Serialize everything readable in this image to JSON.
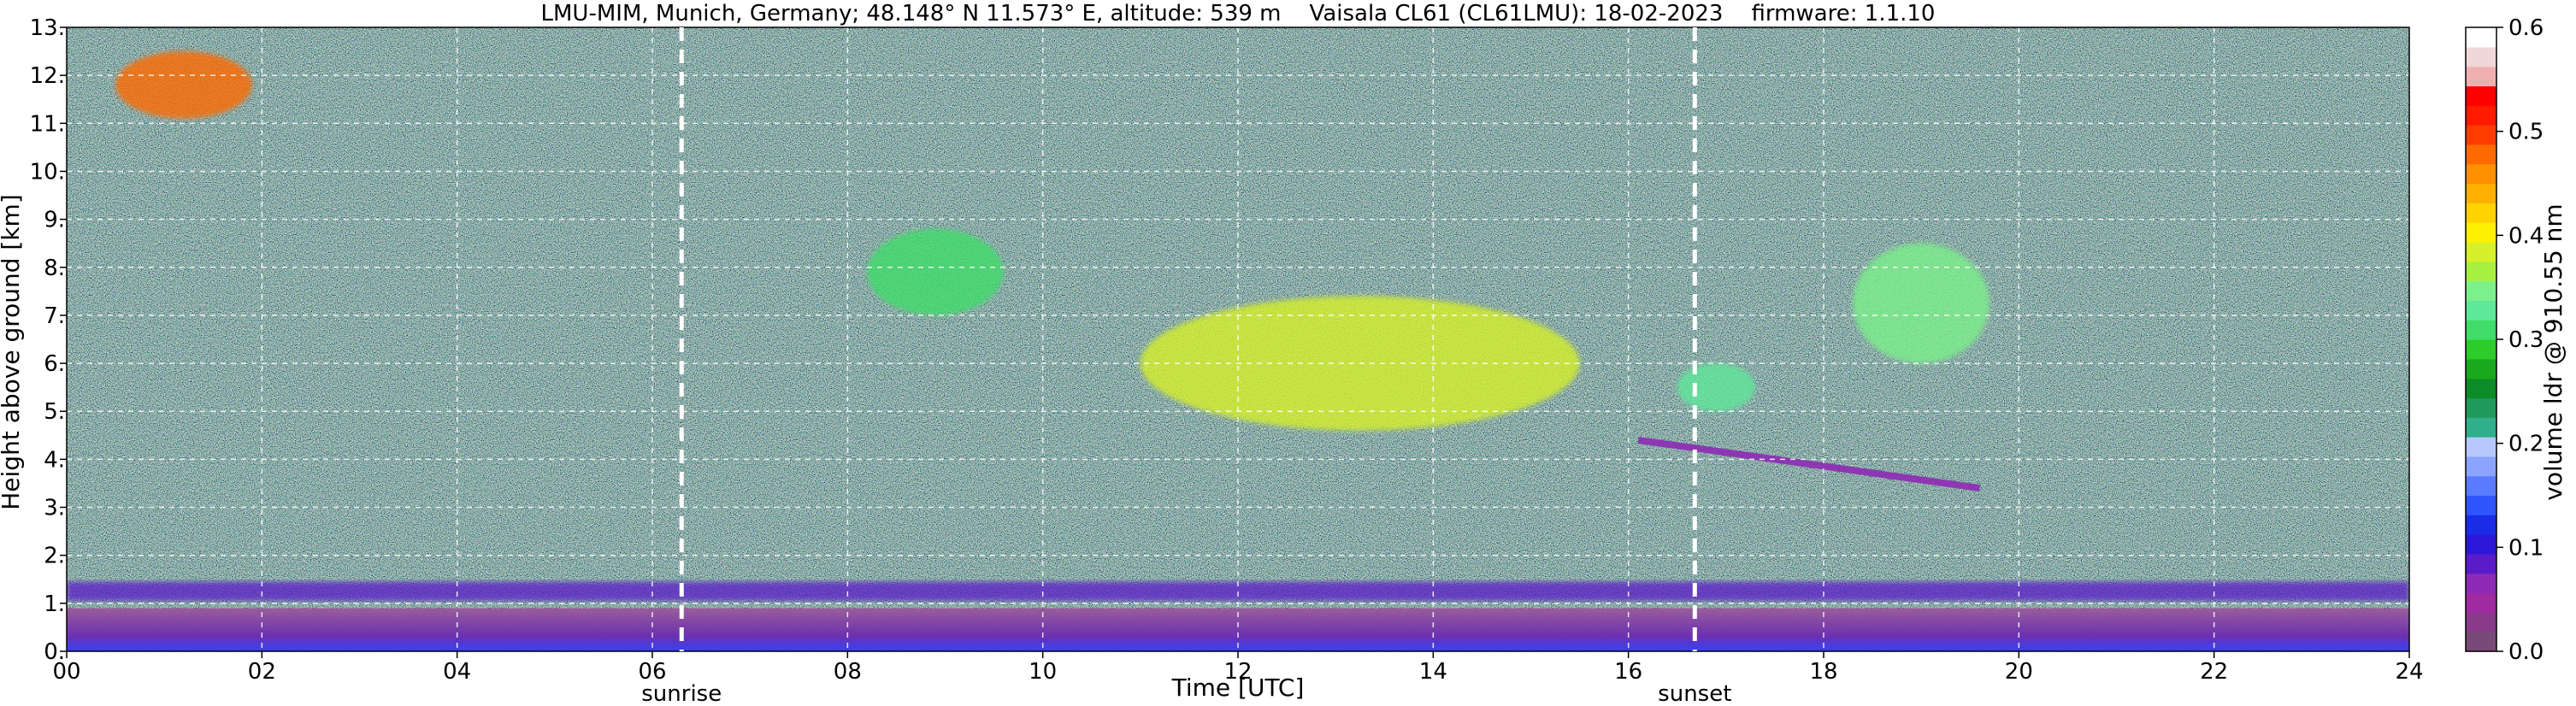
{
  "chart_data": {
    "type": "heatmap",
    "title": "LMU-MIM, Munich, Germany; 48.148° N 11.573° E, altitude: 539 m    Vaisala CL61 (CL61LMU): 18-02-2023    firmware: 1.1.10",
    "xlabel": "Time [UTC]",
    "ylabel": "Height above ground [km]",
    "xlim": [
      0,
      24
    ],
    "ylim": [
      0,
      13
    ],
    "x_ticks": [
      {
        "value": 0,
        "label": "00"
      },
      {
        "value": 2,
        "label": "02"
      },
      {
        "value": 4,
        "label": "04"
      },
      {
        "value": 6,
        "label": "06"
      },
      {
        "value": 8,
        "label": "08"
      },
      {
        "value": 10,
        "label": "10"
      },
      {
        "value": 12,
        "label": "12"
      },
      {
        "value": 14,
        "label": "14"
      },
      {
        "value": 16,
        "label": "16"
      },
      {
        "value": 18,
        "label": "18"
      },
      {
        "value": 20,
        "label": "20"
      },
      {
        "value": 22,
        "label": "22"
      },
      {
        "value": 24,
        "label": "24"
      }
    ],
    "y_ticks": [
      {
        "value": 0,
        "label": "0."
      },
      {
        "value": 1,
        "label": "1."
      },
      {
        "value": 2,
        "label": "2."
      },
      {
        "value": 3,
        "label": "3."
      },
      {
        "value": 4,
        "label": "4."
      },
      {
        "value": 5,
        "label": "5."
      },
      {
        "value": 6,
        "label": "6."
      },
      {
        "value": 7,
        "label": "7."
      },
      {
        "value": 8,
        "label": "8."
      },
      {
        "value": 9,
        "label": "9."
      },
      {
        "value": 10,
        "label": "10."
      },
      {
        "value": 11,
        "label": "11."
      },
      {
        "value": 12,
        "label": "12."
      },
      {
        "value": 13,
        "label": "13."
      }
    ],
    "grid": true,
    "markers": [
      {
        "name": "sunrise",
        "x": 6.3
      },
      {
        "name": "sunset",
        "x": 16.68
      }
    ],
    "colorbar": {
      "label": "volume ldr @ 910.55 nm",
      "range": [
        0.0,
        0.6
      ],
      "ticks": [
        {
          "value": 0.0,
          "label": "0.0"
        },
        {
          "value": 0.1,
          "label": "0.1"
        },
        {
          "value": 0.2,
          "label": "0.2"
        },
        {
          "value": 0.3,
          "label": "0.3"
        },
        {
          "value": 0.4,
          "label": "0.4"
        },
        {
          "value": 0.5,
          "label": "0.5"
        },
        {
          "value": 0.6,
          "label": "0.6"
        }
      ],
      "colors": [
        "#784a78",
        "#8a3a8a",
        "#a02aa0",
        "#8e2bb4",
        "#5a1cc8",
        "#2a18d6",
        "#1b2ce6",
        "#2f55ff",
        "#5b7bff",
        "#8aa4ff",
        "#b7c8ff",
        "#2fb08a",
        "#1f9a5a",
        "#0c8c28",
        "#18aa1e",
        "#2ccc2a",
        "#40dd6a",
        "#5ee89a",
        "#7cf08a",
        "#a8f040",
        "#d6f02a",
        "#fff000",
        "#ffd200",
        "#ffb000",
        "#ff9000",
        "#ff6a00",
        "#ff3c00",
        "#ff1a00",
        "#ff0000",
        "#f0b0b0",
        "#f0d8d8",
        "#ffffff"
      ]
    },
    "features": [
      {
        "kind": "surface_layer",
        "x": [
          0,
          24
        ],
        "y": [
          0,
          0.9
        ],
        "value": 0.02
      },
      {
        "kind": "boundary_layer_top",
        "x": [
          0,
          24
        ],
        "y": [
          1.05,
          1.45
        ],
        "value": 0.08
      },
      {
        "kind": "cirrus",
        "x": [
          11.0,
          15.5
        ],
        "y": [
          4.6,
          7.4
        ],
        "value": 0.38
      },
      {
        "kind": "cirrus",
        "x": [
          16.5,
          17.3
        ],
        "y": [
          5.0,
          6.0
        ],
        "value": 0.33
      },
      {
        "kind": "cirrus",
        "x": [
          18.3,
          19.7
        ],
        "y": [
          6.0,
          8.5
        ],
        "value": 0.35
      },
      {
        "kind": "cirrus",
        "x": [
          8.2,
          9.6
        ],
        "y": [
          7.0,
          8.8
        ],
        "value": 0.3
      },
      {
        "kind": "aerosol_layer",
        "x": [
          16.1,
          19.6
        ],
        "y": [
          3.4,
          4.4
        ],
        "value": 0.07
      },
      {
        "kind": "cirrus",
        "x": [
          0.5,
          1.9
        ],
        "y": [
          11.1,
          12.5
        ],
        "value": 0.48
      }
    ]
  }
}
